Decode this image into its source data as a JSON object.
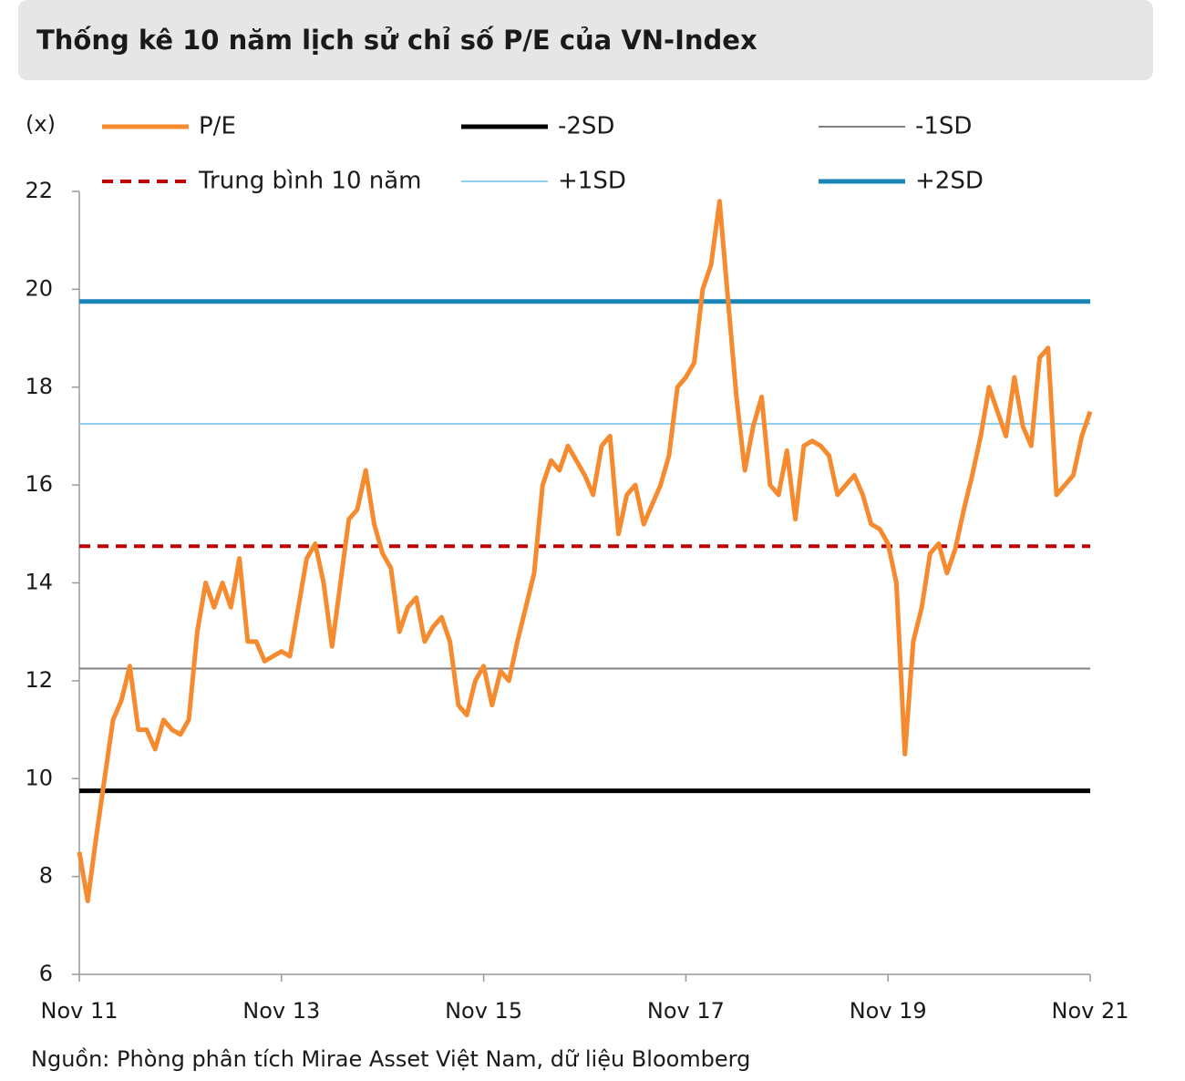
{
  "chart_data": {
    "type": "line",
    "title": "Thống kê 10 năm lịch sử chỉ số P/E của VN-Index",
    "y_label": "(x)",
    "source": "Nguồn: Phòng phân tích Mirae Asset Việt Nam, dữ liệu Bloomberg",
    "categories": [
      "Nov 11",
      null,
      null,
      null,
      null,
      null,
      null,
      null,
      null,
      null,
      null,
      null,
      null,
      null,
      null,
      null,
      null,
      null,
      null,
      null,
      null,
      null,
      null,
      null,
      "Nov 13",
      null,
      null,
      null,
      null,
      null,
      null,
      null,
      null,
      null,
      null,
      null,
      null,
      null,
      null,
      null,
      null,
      null,
      null,
      null,
      null,
      null,
      null,
      null,
      "Nov 15",
      null,
      null,
      null,
      null,
      null,
      null,
      null,
      null,
      null,
      null,
      null,
      null,
      null,
      null,
      null,
      null,
      null,
      null,
      null,
      null,
      null,
      null,
      null,
      "Nov 17",
      null,
      null,
      null,
      null,
      null,
      null,
      null,
      null,
      null,
      null,
      null,
      null,
      null,
      null,
      null,
      null,
      null,
      null,
      null,
      null,
      null,
      null,
      null,
      "Nov 19",
      null,
      null,
      null,
      null,
      null,
      null,
      null,
      null,
      null,
      null,
      null,
      null,
      null,
      null,
      null,
      null,
      null,
      null,
      null,
      null,
      null,
      null,
      null,
      "Nov 21"
    ],
    "series": [
      {
        "name": "P/E",
        "color": "#f58a2e",
        "style": "thick",
        "values": [
          8.5,
          7.5,
          8.8,
          10.0,
          11.2,
          11.6,
          12.3,
          11.0,
          11.0,
          10.6,
          11.2,
          11.0,
          10.9,
          11.2,
          13.0,
          14.0,
          13.5,
          14.0,
          13.5,
          14.5,
          12.8,
          12.8,
          12.4,
          12.5,
          12.6,
          12.5,
          13.5,
          14.5,
          14.8,
          14.0,
          12.7,
          14.0,
          15.3,
          15.5,
          16.3,
          15.2,
          14.6,
          14.3,
          13.0,
          13.5,
          13.7,
          12.8,
          13.1,
          13.3,
          12.8,
          11.5,
          11.3,
          12.0,
          12.3,
          11.5,
          12.2,
          12.0,
          12.8,
          13.5,
          14.2,
          16.0,
          16.5,
          16.3,
          16.8,
          16.5,
          16.2,
          15.8,
          16.8,
          17.0,
          15.0,
          15.8,
          16.0,
          15.2,
          15.6,
          16.0,
          16.6,
          18.0,
          18.2,
          18.5,
          20.0,
          20.5,
          21.8,
          19.8,
          17.8,
          16.3,
          17.2,
          17.8,
          16.0,
          15.8,
          16.7,
          15.3,
          16.8,
          16.9,
          16.8,
          16.6,
          15.8,
          16.0,
          16.2,
          15.8,
          15.2,
          15.1,
          14.8,
          14.0,
          10.5,
          12.8,
          13.5,
          14.6,
          14.8,
          14.2,
          14.7,
          15.5,
          16.2,
          17.0,
          18.0,
          17.5,
          17.0,
          18.2,
          17.2,
          16.8,
          18.6,
          18.8,
          15.8,
          16.0,
          16.2,
          17.0,
          17.5
        ]
      },
      {
        "name": "-2SD",
        "color": "#000000",
        "style": "thick",
        "value": 9.75
      },
      {
        "name": "-1SD",
        "color": "#808080",
        "style": "thin",
        "value": 12.25
      },
      {
        "name": "Trung bình 10 năm",
        "color": "#c00000",
        "style": "dashed",
        "value": 14.75
      },
      {
        "name": "+1SD",
        "color": "#8ecfee",
        "style": "thin",
        "value": 17.25
      },
      {
        "name": "+2SD",
        "color": "#1a86b8",
        "style": "thick",
        "value": 19.75
      }
    ],
    "ylim": [
      6,
      22
    ],
    "yticks": [
      6,
      8,
      10,
      12,
      14,
      16,
      18,
      20,
      22
    ]
  }
}
